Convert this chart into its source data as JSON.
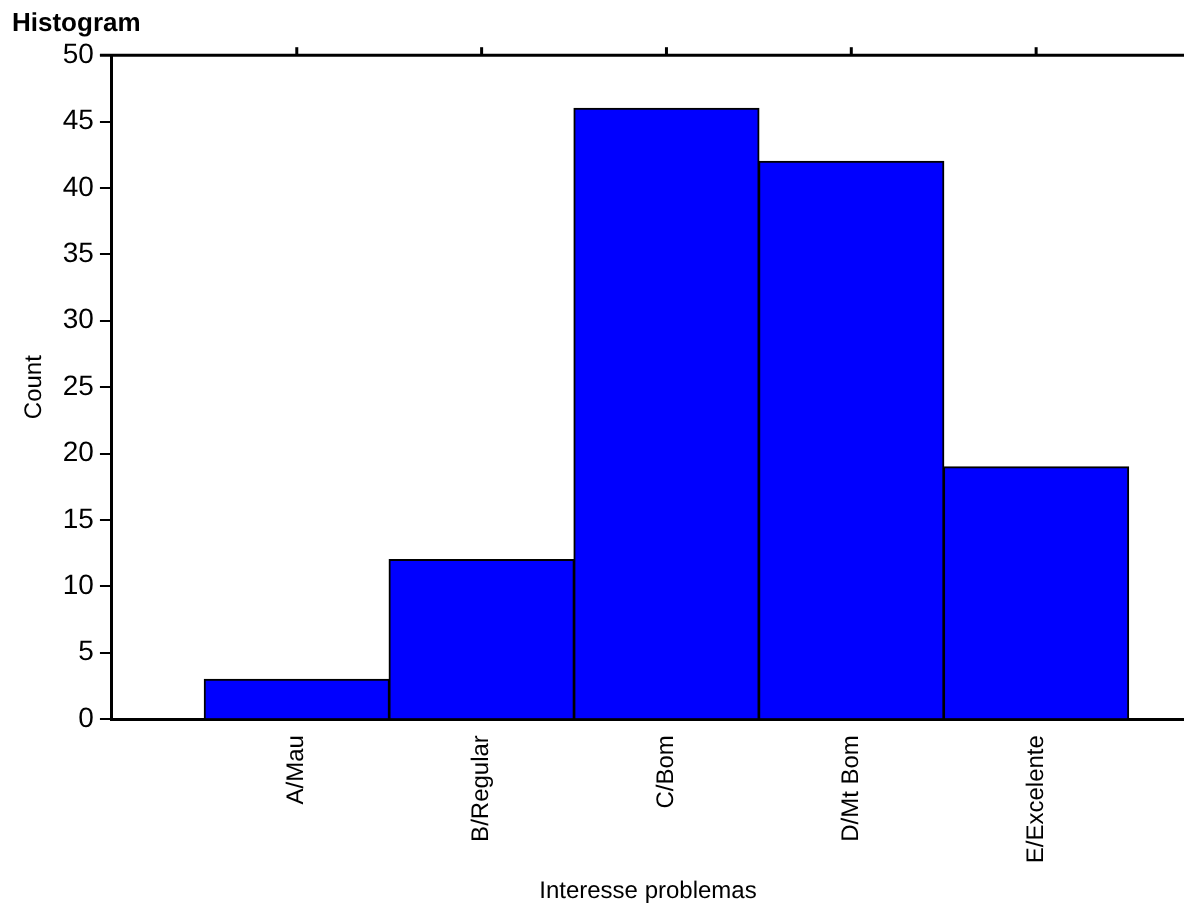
{
  "chart_data": {
    "type": "bar",
    "title": "Histogram",
    "xlabel": "Interesse problemas",
    "ylabel": "Count",
    "categories": [
      "A/Mau",
      "B/Regular",
      "C/Bom",
      "D/Mt Bom",
      "E/Excelente"
    ],
    "values": [
      3,
      12,
      46,
      42,
      19
    ],
    "color": "#0000ff",
    "ylim": [
      0,
      50
    ],
    "yticks": [
      0,
      5,
      10,
      15,
      20,
      25,
      30,
      35,
      40,
      45,
      50
    ],
    "grid": false,
    "legend": false
  }
}
